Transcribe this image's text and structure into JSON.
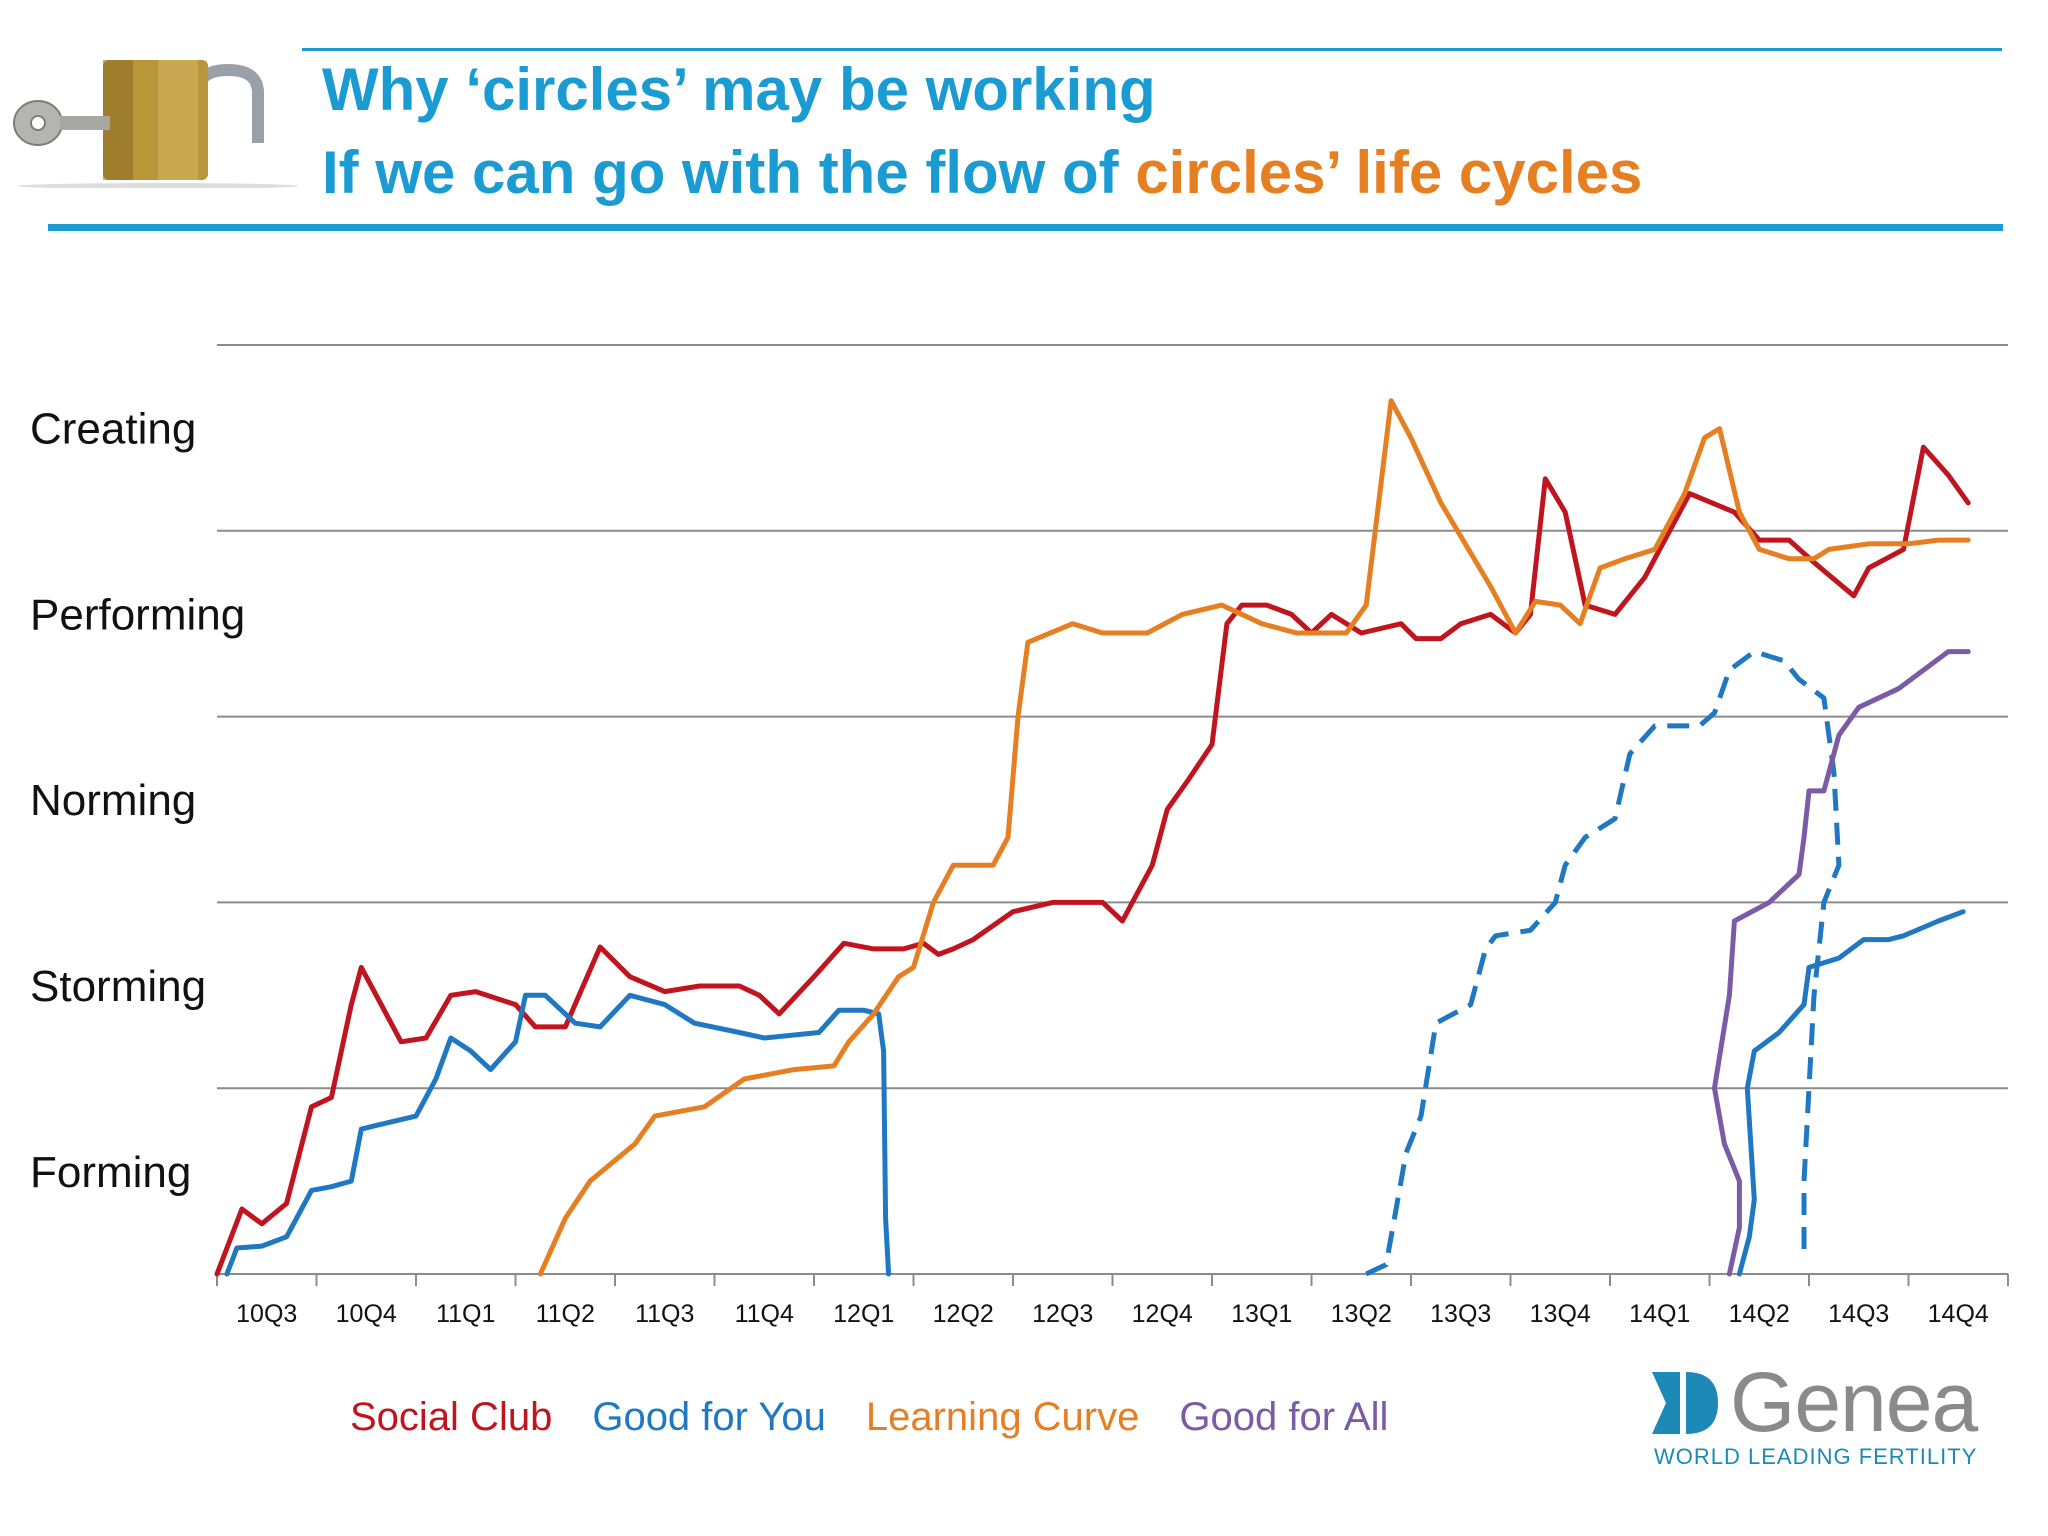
{
  "title": {
    "line1": "Why ‘circles’ may be working",
    "line2_part1": "If we can go with the flow of ",
    "line2_part2": "circles’ life cycles"
  },
  "colors": {
    "title_blue": "#1a9bd1",
    "title_orange": "#e67e22",
    "social_club": "#c0141e",
    "good_for_you": "#1f78c1",
    "learning_curve": "#e67e22",
    "good_for_all": "#7b5aa6",
    "grid": "#8c8c8c"
  },
  "icons": [
    "padlock-with-key-icon",
    "genea-logo-icon"
  ],
  "logo": {
    "word": "Genea",
    "tagline": "WORLD LEADING FERTILITY"
  },
  "chart_data": {
    "type": "line",
    "categories": [
      "10Q3",
      "10Q4",
      "11Q1",
      "11Q2",
      "11Q3",
      "11Q4",
      "12Q1",
      "12Q2",
      "12Q3",
      "12Q4",
      "13Q1",
      "13Q2",
      "13Q3",
      "13Q4",
      "14Q1",
      "14Q2",
      "14Q3",
      "14Q4"
    ],
    "y_stages": [
      "Forming",
      "Storming",
      "Norming",
      "Performing",
      "Creating"
    ],
    "ylim": [
      0,
      5
    ],
    "grid": true,
    "legend_position": "bottom",
    "series": [
      {
        "name": "Social Club",
        "color": "#c0141e",
        "style": "solid",
        "points": [
          [
            0.0,
            0.0
          ],
          [
            0.25,
            0.35
          ],
          [
            0.45,
            0.27
          ],
          [
            0.7,
            0.38
          ],
          [
            0.95,
            0.9
          ],
          [
            1.15,
            0.95
          ],
          [
            1.35,
            1.45
          ],
          [
            1.45,
            1.65
          ],
          [
            1.65,
            1.45
          ],
          [
            1.85,
            1.25
          ],
          [
            2.1,
            1.27
          ],
          [
            2.35,
            1.5
          ],
          [
            2.6,
            1.52
          ],
          [
            3.0,
            1.45
          ],
          [
            3.2,
            1.33
          ],
          [
            3.5,
            1.33
          ],
          [
            3.85,
            1.76
          ],
          [
            4.15,
            1.6
          ],
          [
            4.5,
            1.52
          ],
          [
            4.85,
            1.55
          ],
          [
            5.25,
            1.55
          ],
          [
            5.45,
            1.5
          ],
          [
            5.65,
            1.4
          ],
          [
            6.0,
            1.6
          ],
          [
            6.3,
            1.78
          ],
          [
            6.6,
            1.75
          ],
          [
            6.9,
            1.75
          ],
          [
            7.1,
            1.78
          ],
          [
            7.25,
            1.72
          ],
          [
            7.4,
            1.75
          ],
          [
            7.6,
            1.8
          ],
          [
            8.0,
            1.95
          ],
          [
            8.4,
            2.0
          ],
          [
            8.9,
            2.0
          ],
          [
            9.1,
            1.9
          ],
          [
            9.4,
            2.2
          ],
          [
            9.55,
            2.5
          ],
          [
            9.75,
            2.65
          ],
          [
            10.0,
            2.85
          ],
          [
            10.15,
            3.5
          ],
          [
            10.3,
            3.6
          ],
          [
            10.55,
            3.6
          ],
          [
            10.8,
            3.55
          ],
          [
            11.0,
            3.45
          ],
          [
            11.2,
            3.55
          ],
          [
            11.5,
            3.45
          ],
          [
            11.9,
            3.5
          ],
          [
            12.05,
            3.42
          ],
          [
            12.3,
            3.42
          ],
          [
            12.5,
            3.5
          ],
          [
            12.8,
            3.55
          ],
          [
            13.05,
            3.45
          ],
          [
            13.2,
            3.55
          ],
          [
            13.35,
            4.28
          ],
          [
            13.55,
            4.1
          ],
          [
            13.75,
            3.6
          ],
          [
            14.05,
            3.55
          ],
          [
            14.35,
            3.75
          ],
          [
            14.8,
            4.2
          ],
          [
            15.25,
            4.1
          ],
          [
            15.5,
            3.95
          ],
          [
            15.8,
            3.95
          ],
          [
            16.05,
            3.83
          ],
          [
            16.45,
            3.65
          ],
          [
            16.6,
            3.8
          ],
          [
            16.95,
            3.9
          ],
          [
            17.15,
            4.45
          ],
          [
            17.4,
            4.3
          ],
          [
            17.6,
            4.15
          ]
        ]
      },
      {
        "name": "Good for You",
        "color": "#1f78c1",
        "style": "solid",
        "points": [
          [
            0.1,
            0.0
          ],
          [
            0.2,
            0.14
          ],
          [
            0.45,
            0.15
          ],
          [
            0.7,
            0.2
          ],
          [
            0.95,
            0.45
          ],
          [
            1.15,
            0.47
          ],
          [
            1.35,
            0.5
          ],
          [
            1.45,
            0.78
          ],
          [
            1.6,
            0.8
          ],
          [
            2.0,
            0.85
          ],
          [
            2.2,
            1.05
          ],
          [
            2.35,
            1.27
          ],
          [
            2.55,
            1.2
          ],
          [
            2.75,
            1.1
          ],
          [
            3.0,
            1.25
          ],
          [
            3.1,
            1.5
          ],
          [
            3.3,
            1.5
          ],
          [
            3.6,
            1.35
          ],
          [
            3.85,
            1.33
          ],
          [
            4.15,
            1.5
          ],
          [
            4.5,
            1.45
          ],
          [
            4.8,
            1.35
          ],
          [
            5.25,
            1.3
          ],
          [
            5.5,
            1.27
          ],
          [
            6.05,
            1.3
          ],
          [
            6.25,
            1.42
          ],
          [
            6.5,
            1.42
          ],
          [
            6.65,
            1.4
          ],
          [
            6.7,
            1.2
          ],
          [
            6.72,
            0.3
          ],
          [
            6.75,
            0.0
          ]
        ]
      },
      {
        "name": "Learning Curve",
        "color": "#e67e22",
        "style": "solid",
        "points": [
          [
            3.25,
            0.0
          ],
          [
            3.5,
            0.3
          ],
          [
            3.75,
            0.5
          ],
          [
            4.2,
            0.7
          ],
          [
            4.4,
            0.85
          ],
          [
            4.9,
            0.9
          ],
          [
            5.3,
            1.05
          ],
          [
            5.8,
            1.1
          ],
          [
            6.2,
            1.12
          ],
          [
            6.35,
            1.25
          ],
          [
            6.6,
            1.4
          ],
          [
            6.85,
            1.6
          ],
          [
            7.0,
            1.65
          ],
          [
            7.2,
            2.0
          ],
          [
            7.4,
            2.2
          ],
          [
            7.8,
            2.2
          ],
          [
            7.95,
            2.35
          ],
          [
            8.05,
            3.0
          ],
          [
            8.15,
            3.4
          ],
          [
            8.6,
            3.5
          ],
          [
            8.9,
            3.45
          ],
          [
            9.35,
            3.45
          ],
          [
            9.7,
            3.55
          ],
          [
            10.1,
            3.6
          ],
          [
            10.5,
            3.5
          ],
          [
            10.85,
            3.45
          ],
          [
            11.35,
            3.45
          ],
          [
            11.55,
            3.6
          ],
          [
            11.8,
            4.7
          ],
          [
            12.0,
            4.5
          ],
          [
            12.3,
            4.15
          ],
          [
            12.8,
            3.7
          ],
          [
            13.05,
            3.45
          ],
          [
            13.25,
            3.62
          ],
          [
            13.5,
            3.6
          ],
          [
            13.7,
            3.5
          ],
          [
            13.9,
            3.8
          ],
          [
            14.15,
            3.85
          ],
          [
            14.45,
            3.9
          ],
          [
            14.75,
            4.2
          ],
          [
            14.95,
            4.5
          ],
          [
            15.1,
            4.55
          ],
          [
            15.3,
            4.1
          ],
          [
            15.5,
            3.9
          ],
          [
            15.8,
            3.85
          ],
          [
            16.05,
            3.85
          ],
          [
            16.2,
            3.9
          ],
          [
            16.6,
            3.93
          ],
          [
            17.0,
            3.93
          ],
          [
            17.3,
            3.95
          ],
          [
            17.6,
            3.95
          ]
        ]
      },
      {
        "name": "Good for You (dashed)",
        "color": "#1f78c1",
        "style": "dashed",
        "points": [
          [
            11.55,
            0.0
          ],
          [
            11.75,
            0.05
          ],
          [
            11.85,
            0.35
          ],
          [
            11.95,
            0.65
          ],
          [
            12.1,
            0.85
          ],
          [
            12.25,
            1.35
          ],
          [
            12.6,
            1.45
          ],
          [
            12.75,
            1.75
          ],
          [
            12.85,
            1.82
          ],
          [
            13.2,
            1.85
          ],
          [
            13.45,
            2.0
          ],
          [
            13.55,
            2.2
          ],
          [
            13.75,
            2.35
          ],
          [
            14.05,
            2.45
          ],
          [
            14.2,
            2.8
          ],
          [
            14.45,
            2.95
          ],
          [
            14.9,
            2.95
          ],
          [
            15.05,
            3.02
          ],
          [
            15.2,
            3.25
          ],
          [
            15.45,
            3.35
          ],
          [
            15.75,
            3.3
          ],
          [
            15.9,
            3.2
          ],
          [
            16.15,
            3.1
          ],
          [
            16.2,
            2.9
          ],
          [
            16.25,
            2.7
          ],
          [
            16.3,
            2.2
          ],
          [
            16.15,
            2.0
          ],
          [
            16.05,
            1.5
          ],
          [
            16.0,
            1.0
          ],
          [
            15.95,
            0.5
          ],
          [
            15.95,
            0.1
          ]
        ]
      },
      {
        "name": "Good for You (14Q3)",
        "color": "#1f78c1",
        "style": "solid",
        "points": [
          [
            15.3,
            0.0
          ],
          [
            15.4,
            0.2
          ],
          [
            15.45,
            0.4
          ],
          [
            15.38,
            1.0
          ],
          [
            15.45,
            1.2
          ],
          [
            15.7,
            1.3
          ],
          [
            15.95,
            1.45
          ],
          [
            16.0,
            1.65
          ],
          [
            16.3,
            1.7
          ],
          [
            16.55,
            1.8
          ],
          [
            16.8,
            1.8
          ],
          [
            16.95,
            1.82
          ],
          [
            17.3,
            1.9
          ],
          [
            17.55,
            1.95
          ]
        ]
      },
      {
        "name": "Good for All",
        "color": "#7b5aa6",
        "style": "solid",
        "points": [
          [
            15.2,
            0.0
          ],
          [
            15.3,
            0.25
          ],
          [
            15.3,
            0.5
          ],
          [
            15.15,
            0.7
          ],
          [
            15.05,
            1.0
          ],
          [
            15.2,
            1.5
          ],
          [
            15.25,
            1.9
          ],
          [
            15.6,
            2.0
          ],
          [
            15.9,
            2.15
          ],
          [
            15.95,
            2.35
          ],
          [
            16.0,
            2.6
          ],
          [
            16.15,
            2.6
          ],
          [
            16.3,
            2.9
          ],
          [
            16.5,
            3.05
          ],
          [
            16.9,
            3.15
          ],
          [
            17.4,
            3.35
          ],
          [
            17.6,
            3.35
          ]
        ]
      }
    ]
  },
  "legend": [
    {
      "label": "Social Club",
      "color": "#c0141e"
    },
    {
      "label": "Good for You",
      "color": "#1f78c1"
    },
    {
      "label": "Learning Curve",
      "color": "#e67e22"
    },
    {
      "label": "Good for All",
      "color": "#7b5aa6"
    }
  ]
}
